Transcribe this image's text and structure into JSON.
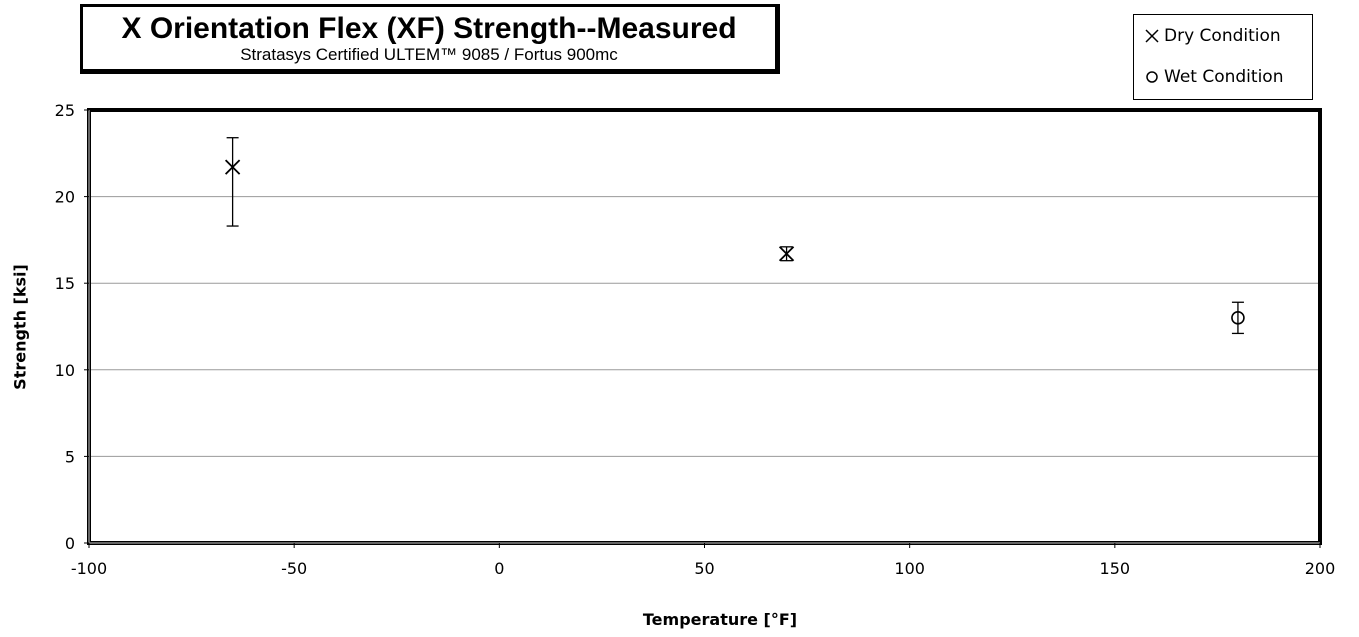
{
  "chart_data": {
    "type": "scatter",
    "title": "X Orientation Flex (XF) Strength--Measured",
    "subtitle": "Stratasys Certified  ULTEM™  9085 / Fortus 900mc",
    "xlabel": "Temperature [°F]",
    "ylabel": "Strength  [ksi]",
    "xlim": [
      -100,
      200
    ],
    "ylim": [
      0,
      25
    ],
    "x_ticks": [
      -100,
      -50,
      0,
      50,
      100,
      150,
      200
    ],
    "y_ticks": [
      0,
      5,
      10,
      15,
      20,
      25
    ],
    "grid": "horizontal",
    "legend_position": "top-right",
    "series": [
      {
        "name": "Dry Condition",
        "marker": "x",
        "points": [
          {
            "x": -65,
            "y": 21.7,
            "y_low": 18.3,
            "y_high": 23.4
          },
          {
            "x": 70,
            "y": 16.7,
            "y_low": 16.3,
            "y_high": 17.1
          }
        ]
      },
      {
        "name": "Wet Condition",
        "marker": "circle",
        "points": [
          {
            "x": 180,
            "y": 13.0,
            "y_low": 12.1,
            "y_high": 13.9
          }
        ]
      }
    ]
  }
}
